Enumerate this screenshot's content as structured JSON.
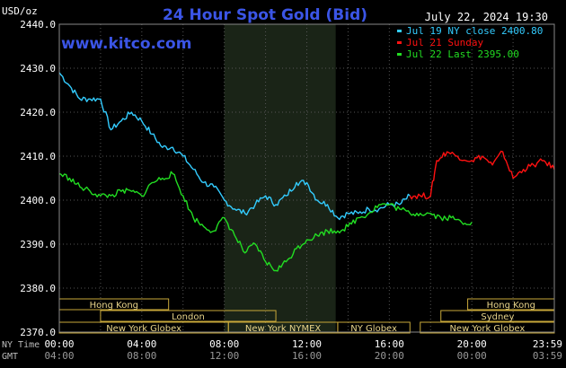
{
  "chart_data": {
    "type": "line",
    "title": "24 Hour Spot Gold (Bid)",
    "source": "www.kitco.com",
    "timestamp": "July 22, 2024 19:30",
    "ylabel": "USD/oz",
    "ylim": [
      2370,
      2440
    ],
    "y_ticks": [
      "2440.0",
      "2430.0",
      "2420.0",
      "2410.0",
      "2400.0",
      "2390.0",
      "2380.0",
      "2370.0"
    ],
    "x_axis": {
      "ny_label": "NY Time",
      "gmt_label": "GMT",
      "ny_ticks": [
        "00:00",
        "04:00",
        "08:00",
        "12:00",
        "16:00",
        "20:00",
        "23:59"
      ],
      "gmt_ticks": [
        "04:00",
        "08:00",
        "12:00",
        "16:00",
        "20:00",
        "00:00",
        "03:59"
      ]
    },
    "legend": [
      {
        "label": "Jul 19 NY close 2400.80",
        "color": "#33ccff"
      },
      {
        "label": "Jul 21 Sunday",
        "color": "#ff1111"
      },
      {
        "label": "Jul 22 Last 2395.00",
        "color": "#22dd22"
      }
    ],
    "series": [
      {
        "name": "Jul 19 NY close 2400.80",
        "color": "#33ccff",
        "x": [
          0,
          0.5,
          1,
          1.5,
          2,
          2.5,
          3,
          3.5,
          4,
          4.5,
          5,
          5.5,
          6,
          6.5,
          7,
          7.5,
          8,
          8.5,
          9,
          9.5,
          10,
          10.5,
          11,
          11.5,
          12,
          12.5,
          13,
          13.5,
          14,
          14.5,
          15,
          15.5,
          16,
          16.5,
          17
        ],
        "y": [
          2429,
          2426,
          2423,
          2423,
          2423,
          2416,
          2418,
          2420,
          2418,
          2415,
          2412,
          2412,
          2410,
          2407,
          2404,
          2403,
          2400,
          2398,
          2397,
          2399,
          2401,
          2399,
          2401,
          2404,
          2404,
          2400,
          2399,
          2396,
          2397,
          2397,
          2398,
          2398,
          2399,
          2399,
          2401
        ]
      },
      {
        "name": "Jul 21 Sunday",
        "color": "#ff1111",
        "x": [
          17,
          17.5,
          18,
          18.3,
          18.8,
          19.3,
          20,
          20.5,
          21,
          21.5,
          22,
          22.5,
          23,
          23.5,
          24
        ],
        "y": [
          2401,
          2401,
          2401,
          2409,
          2411,
          2410,
          2409,
          2410,
          2408,
          2411,
          2405,
          2407,
          2408,
          2409,
          2407
        ]
      },
      {
        "name": "Jul 22 Last 2395.00",
        "color": "#22dd22",
        "x": [
          0,
          0.5,
          1,
          1.5,
          2,
          2.5,
          3,
          3.5,
          4,
          4.5,
          5,
          5.5,
          6,
          6.5,
          7,
          7.5,
          8,
          8.5,
          9,
          9.5,
          10,
          10.5,
          11,
          11.5,
          12,
          12.5,
          13,
          13.5,
          14,
          14.5,
          15,
          15.5,
          16,
          16.5,
          17,
          17.5,
          18,
          18.5,
          19,
          19.5,
          20
        ],
        "y": [
          2406,
          2405,
          2403,
          2402,
          2401,
          2401,
          2402,
          2402,
          2401,
          2404,
          2405,
          2406,
          2401,
          2396,
          2394,
          2393,
          2396,
          2392,
          2388,
          2390,
          2386,
          2384,
          2386,
          2389,
          2391,
          2392,
          2393,
          2393,
          2394,
          2396,
          2397,
          2399,
          2399,
          2398,
          2397,
          2397,
          2397,
          2396,
          2396,
          2395,
          2395
        ]
      }
    ],
    "sessions": [
      {
        "label": "Hong Kong",
        "row": 0,
        "start": 0,
        "end": 5.3
      },
      {
        "label": "Hong Kong",
        "row": 0,
        "start": 19.8,
        "end": 24
      },
      {
        "label": "London",
        "row": 1,
        "start": 2,
        "end": 10.5
      },
      {
        "label": "Sydney",
        "row": 1,
        "start": 18.5,
        "end": 24
      },
      {
        "label": "New York Globex",
        "row": 2,
        "start": 0,
        "end": 8.2
      },
      {
        "label": "New York NYMEX",
        "row": 2,
        "start": 8.2,
        "end": 13.5
      },
      {
        "label": "NY Globex",
        "row": 2,
        "start": 13.5,
        "end": 17
      },
      {
        "label": "New York Globex",
        "row": 2,
        "start": 17.5,
        "end": 24
      }
    ],
    "highlight_band": {
      "start": 8,
      "end": 13.4
    }
  }
}
